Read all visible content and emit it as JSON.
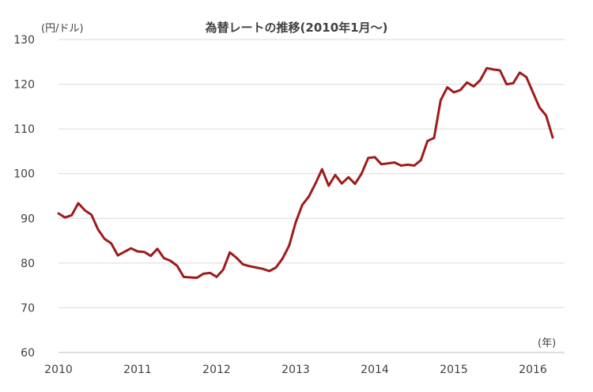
{
  "chart_data": {
    "type": "line",
    "title": "為替レートの推移(2010年1月～)",
    "ylabel": "(円/ドル)",
    "xlabel": "(年)",
    "ylim": [
      60,
      130
    ],
    "yticks": [
      60,
      70,
      80,
      90,
      100,
      110,
      120,
      130
    ],
    "xlim": [
      2010,
      2016.25
    ],
    "xticks": [
      2010,
      2011,
      2012,
      2013,
      2014,
      2015,
      2016
    ],
    "xtick_labels": [
      "2010",
      "2011",
      "2012",
      "2013",
      "2014",
      "2015",
      "2016"
    ],
    "grid": true,
    "legend": "none",
    "series": [
      {
        "color": "#9e1b1b",
        "x": [
          2010.0,
          2010.0833,
          2010.1667,
          2010.25,
          2010.3333,
          2010.4167,
          2010.5,
          2010.5833,
          2010.6667,
          2010.75,
          2010.8333,
          2010.9167,
          2011.0,
          2011.0833,
          2011.1667,
          2011.25,
          2011.3333,
          2011.4167,
          2011.5,
          2011.5833,
          2011.6667,
          2011.75,
          2011.8333,
          2011.9167,
          2012.0,
          2012.0833,
          2012.1667,
          2012.25,
          2012.3333,
          2012.4167,
          2012.5,
          2012.5833,
          2012.6667,
          2012.75,
          2012.8333,
          2012.9167,
          2013.0,
          2013.0833,
          2013.1667,
          2013.25,
          2013.3333,
          2013.4167,
          2013.5,
          2013.5833,
          2013.6667,
          2013.75,
          2013.8333,
          2013.9167,
          2014.0,
          2014.0833,
          2014.1667,
          2014.25,
          2014.3333,
          2014.4167,
          2014.5,
          2014.5833,
          2014.6667,
          2014.75,
          2014.8333,
          2014.9167,
          2015.0,
          2015.0833,
          2015.1667,
          2015.25,
          2015.3333,
          2015.4167,
          2015.5,
          2015.5833,
          2015.6667,
          2015.75,
          2015.8333,
          2015.9167,
          2016.0,
          2016.0833,
          2016.1667,
          2016.25
        ],
        "values": [
          91.1,
          90.2,
          90.7,
          93.4,
          91.8,
          90.8,
          87.5,
          85.4,
          84.4,
          81.7,
          82.5,
          83.3,
          82.6,
          82.5,
          81.6,
          83.2,
          81.1,
          80.5,
          79.4,
          76.9,
          76.8,
          76.7,
          77.6,
          77.8,
          76.9,
          78.5,
          82.4,
          81.2,
          79.7,
          79.3,
          79.0,
          78.7,
          78.2,
          79.0,
          81.0,
          83.9,
          89.1,
          93.0,
          94.9,
          97.8,
          101.0,
          97.3,
          99.7,
          97.8,
          99.2,
          97.7,
          100.0,
          103.5,
          103.7,
          102.1,
          102.3,
          102.5,
          101.8,
          102.0,
          101.8,
          103.0,
          107.3,
          108.0,
          116.4,
          119.3,
          118.2,
          118.7,
          120.4,
          119.5,
          120.9,
          123.6,
          123.3,
          123.1,
          120.0,
          120.2,
          122.6,
          121.6,
          118.2,
          114.8,
          113.0,
          108.1
        ]
      }
    ]
  }
}
